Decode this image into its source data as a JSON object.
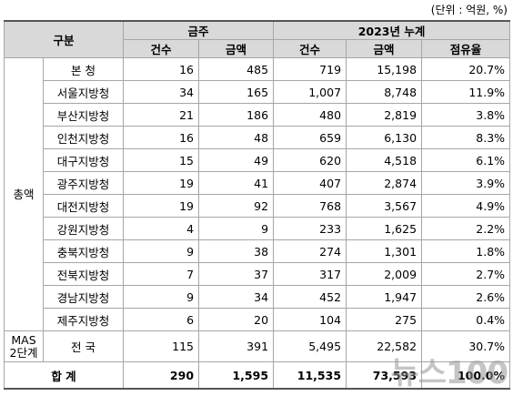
{
  "header": {
    "unit": "(단위 : 억원, %)",
    "division": "구분",
    "week": "금주",
    "cumulative": "2023년 누계",
    "subheaders": [
      "건수",
      "금액",
      "건수",
      "금액",
      "점유율"
    ]
  },
  "sections": [
    {
      "label_lines": [
        "총액"
      ],
      "rows": [
        {
          "name": "본 청",
          "values": [
            "16",
            "485",
            "719",
            "15,198",
            "20.7%"
          ]
        },
        {
          "name": "서울지방청",
          "values": [
            "34",
            "165",
            "1,007",
            "8,748",
            "11.9%"
          ]
        },
        {
          "name": "부산지방청",
          "values": [
            "21",
            "186",
            "480",
            "2,819",
            "3.8%"
          ]
        },
        {
          "name": "인천지방청",
          "values": [
            "16",
            "48",
            "659",
            "6,130",
            "8.3%"
          ]
        },
        {
          "name": "대구지방청",
          "values": [
            "15",
            "49",
            "620",
            "4,518",
            "6.1%"
          ]
        },
        {
          "name": "광주지방청",
          "values": [
            "19",
            "41",
            "407",
            "2,874",
            "3.9%"
          ]
        },
        {
          "name": "대전지방청",
          "values": [
            "19",
            "92",
            "768",
            "3,567",
            "4.9%"
          ]
        },
        {
          "name": "강원지방청",
          "values": [
            "4",
            "9",
            "233",
            "1,625",
            "2.2%"
          ]
        },
        {
          "name": "충북지방청",
          "values": [
            "9",
            "38",
            "274",
            "1,301",
            "1.8%"
          ]
        },
        {
          "name": "전북지방청",
          "values": [
            "7",
            "37",
            "317",
            "2,009",
            "2.7%"
          ]
        },
        {
          "name": "경남지방청",
          "values": [
            "9",
            "34",
            "452",
            "1,947",
            "2.6%"
          ]
        },
        {
          "name": "제주지방청",
          "values": [
            "6",
            "20",
            "104",
            "275",
            "0.4%"
          ]
        }
      ]
    },
    {
      "label_lines": [
        "MAS",
        "2단계"
      ],
      "rows": [
        {
          "name": "전 국",
          "values": [
            "115",
            "391",
            "5,495",
            "22,582",
            "30.7%"
          ]
        }
      ]
    }
  ],
  "total": {
    "name": "합 계",
    "values": [
      "290",
      "1,595",
      "11,535",
      "73,593",
      "100.0%"
    ]
  },
  "watermark": "뉴스100"
}
